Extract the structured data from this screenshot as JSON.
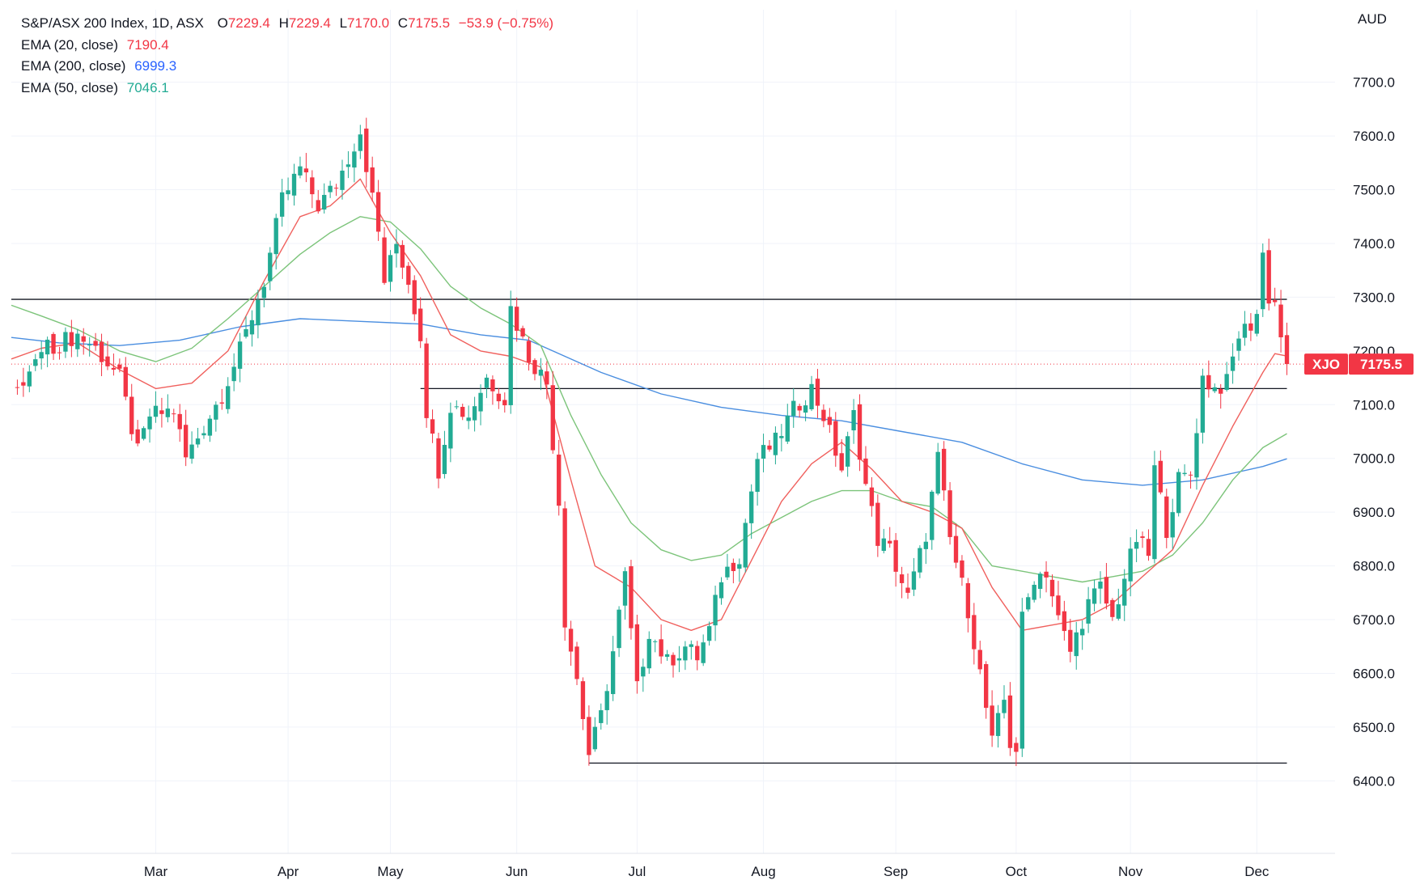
{
  "header": {
    "symbol_line": "S&P/ASX 200 Index, 1D, ASX",
    "ohlc": [
      {
        "key": "O",
        "value": "7229.4"
      },
      {
        "key": "H",
        "value": "7229.4"
      },
      {
        "key": "L",
        "value": "7170.0"
      },
      {
        "key": "C",
        "value": "7175.5"
      }
    ],
    "change": "−53.9 (−0.75%)",
    "currency": "AUD"
  },
  "indicators": [
    {
      "label": "EMA (20, close)",
      "value": "7190.4",
      "color": "#f23645"
    },
    {
      "label": "EMA (200, close)",
      "value": "6999.3",
      "color": "#2962ff"
    },
    {
      "label": "EMA (50, close)",
      "value": "7046.1",
      "color": "#22ab94"
    }
  ],
  "colors": {
    "up": "#22ab94",
    "down": "#f23645",
    "ema20": "#f0605d",
    "ema50": "#7cc47a",
    "ema200": "#4a8ee0",
    "grid": "#f0f3fa",
    "axis_text": "#131722",
    "last_price": "#f23645"
  },
  "chart_data": {
    "type": "candlestick",
    "title": "S&P/ASX 200 Index, 1D, ASX",
    "y_axis": {
      "label": "AUD",
      "range": [
        6265,
        7835
      ],
      "ticks": [
        6400,
        6500,
        6600,
        6700,
        6800,
        6900,
        7000,
        7100,
        7200,
        7300,
        7400,
        7500,
        7600,
        7700
      ],
      "tick_labels": [
        "6400.0",
        "6500.0",
        "6600.0",
        "6700.0",
        "6800.0",
        "6900.0",
        "7000.0",
        "7100.0",
        "7200.0",
        "7300.0",
        "7400.0",
        "7500.0",
        "7600.0",
        "7700.0"
      ]
    },
    "x_axis": {
      "start_index": -8,
      "end_index": 212,
      "labels": [
        {
          "text": "Mar",
          "index": 16
        },
        {
          "text": "Apr",
          "index": 38
        },
        {
          "text": "May",
          "index": 55
        },
        {
          "text": "Jun",
          "index": 76
        },
        {
          "text": "Jul",
          "index": 96
        },
        {
          "text": "Aug",
          "index": 117
        },
        {
          "text": "Sep",
          "index": 139
        },
        {
          "text": "Oct",
          "index": 159
        },
        {
          "text": "Nov",
          "index": 178
        },
        {
          "text": "Dec",
          "index": 199
        }
      ]
    },
    "grid": true,
    "legend": "top-left",
    "last_price": {
      "label": "XJO",
      "value": "7175.5",
      "price": 7175.5
    },
    "horizontal_lines": [
      {
        "price": 7296,
        "from_index": -8,
        "to_index": 204
      },
      {
        "price": 7130,
        "from_index": 60,
        "to_index": 204
      },
      {
        "price": 6433,
        "from_index": 88,
        "to_index": 204
      }
    ],
    "key_closes": [
      [
        -7,
        7120
      ],
      [
        -3,
        7200
      ],
      [
        3,
        7230
      ],
      [
        6,
        7205
      ],
      [
        10,
        7150
      ],
      [
        13,
        7010
      ],
      [
        15,
        7080
      ],
      [
        19,
        7090
      ],
      [
        21,
        7000
      ],
      [
        24,
        7060
      ],
      [
        27,
        7120
      ],
      [
        30,
        7200
      ],
      [
        34,
        7330
      ],
      [
        37,
        7480
      ],
      [
        40,
        7540
      ],
      [
        43,
        7470
      ],
      [
        46,
        7510
      ],
      [
        48,
        7560
      ],
      [
        50,
        7610
      ],
      [
        53,
        7420
      ],
      [
        54,
        7330
      ],
      [
        56,
        7400
      ],
      [
        58,
        7330
      ],
      [
        60,
        7230
      ],
      [
        61,
        7090
      ],
      [
        63,
        6980
      ],
      [
        65,
        7100
      ],
      [
        68,
        7080
      ],
      [
        71,
        7150
      ],
      [
        74,
        7110
      ],
      [
        75,
        7280
      ],
      [
        78,
        7190
      ],
      [
        81,
        7140
      ],
      [
        83,
        6920
      ],
      [
        84,
        6700
      ],
      [
        86,
        6590
      ],
      [
        88,
        6450
      ],
      [
        90,
        6520
      ],
      [
        92,
        6640
      ],
      [
        94,
        6780
      ],
      [
        96,
        6570
      ],
      [
        98,
        6680
      ],
      [
        101,
        6620
      ],
      [
        104,
        6650
      ],
      [
        106,
        6630
      ],
      [
        108,
        6680
      ],
      [
        110,
        6780
      ],
      [
        113,
        6820
      ],
      [
        116,
        7000
      ],
      [
        119,
        7030
      ],
      [
        122,
        7090
      ],
      [
        125,
        7130
      ],
      [
        127,
        7080
      ],
      [
        130,
        6980
      ],
      [
        132,
        7080
      ],
      [
        134,
        6950
      ],
      [
        136,
        6850
      ],
      [
        138,
        6830
      ],
      [
        141,
        6740
      ],
      [
        144,
        6860
      ],
      [
        146,
        7000
      ],
      [
        148,
        6850
      ],
      [
        151,
        6720
      ],
      [
        153,
        6600
      ],
      [
        155,
        6470
      ],
      [
        157,
        6550
      ],
      [
        158,
        6470
      ],
      [
        159,
        6460
      ],
      [
        160,
        6700
      ],
      [
        162,
        6780
      ],
      [
        164,
        6790
      ],
      [
        166,
        6700
      ],
      [
        168,
        6640
      ],
      [
        171,
        6730
      ],
      [
        173,
        6760
      ],
      [
        175,
        6700
      ],
      [
        177,
        6780
      ],
      [
        179,
        6850
      ],
      [
        181,
        6820
      ],
      [
        182,
        6980
      ],
      [
        184,
        6870
      ],
      [
        186,
        6960
      ],
      [
        188,
        6970
      ],
      [
        190,
        7150
      ],
      [
        192,
        7130
      ],
      [
        194,
        7140
      ],
      [
        196,
        7230
      ],
      [
        198,
        7250
      ],
      [
        199,
        7270
      ],
      [
        200,
        7380
      ],
      [
        201,
        7300
      ],
      [
        202,
        7290
      ],
      [
        203,
        7230
      ],
      [
        204,
        7175.5
      ]
    ],
    "ema20_points": [
      [
        -8,
        7185
      ],
      [
        -3,
        7205
      ],
      [
        3,
        7215
      ],
      [
        10,
        7165
      ],
      [
        16,
        7130
      ],
      [
        22,
        7140
      ],
      [
        28,
        7200
      ],
      [
        34,
        7330
      ],
      [
        40,
        7450
      ],
      [
        45,
        7470
      ],
      [
        50,
        7520
      ],
      [
        55,
        7420
      ],
      [
        60,
        7340
      ],
      [
        65,
        7230
      ],
      [
        70,
        7200
      ],
      [
        75,
        7190
      ],
      [
        80,
        7170
      ],
      [
        85,
        6960
      ],
      [
        89,
        6800
      ],
      [
        95,
        6760
      ],
      [
        100,
        6700
      ],
      [
        105,
        6680
      ],
      [
        110,
        6700
      ],
      [
        115,
        6810
      ],
      [
        120,
        6920
      ],
      [
        125,
        6990
      ],
      [
        130,
        7030
      ],
      [
        135,
        6980
      ],
      [
        140,
        6920
      ],
      [
        145,
        6900
      ],
      [
        150,
        6870
      ],
      [
        155,
        6760
      ],
      [
        160,
        6680
      ],
      [
        165,
        6690
      ],
      [
        170,
        6700
      ],
      [
        175,
        6730
      ],
      [
        180,
        6780
      ],
      [
        185,
        6830
      ],
      [
        190,
        6950
      ],
      [
        195,
        7060
      ],
      [
        200,
        7160
      ],
      [
        202,
        7195
      ],
      [
        204,
        7190.4
      ]
    ],
    "ema50_points": [
      [
        -8,
        7285
      ],
      [
        -3,
        7265
      ],
      [
        3,
        7240
      ],
      [
        10,
        7200
      ],
      [
        16,
        7180
      ],
      [
        22,
        7205
      ],
      [
        28,
        7260
      ],
      [
        34,
        7320
      ],
      [
        40,
        7380
      ],
      [
        45,
        7420
      ],
      [
        50,
        7450
      ],
      [
        55,
        7440
      ],
      [
        60,
        7390
      ],
      [
        65,
        7320
      ],
      [
        70,
        7280
      ],
      [
        75,
        7250
      ],
      [
        80,
        7210
      ],
      [
        85,
        7080
      ],
      [
        90,
        6970
      ],
      [
        95,
        6880
      ],
      [
        100,
        6830
      ],
      [
        105,
        6810
      ],
      [
        110,
        6820
      ],
      [
        115,
        6860
      ],
      [
        120,
        6890
      ],
      [
        125,
        6920
      ],
      [
        130,
        6940
      ],
      [
        135,
        6940
      ],
      [
        140,
        6920
      ],
      [
        145,
        6910
      ],
      [
        150,
        6870
      ],
      [
        155,
        6800
      ],
      [
        160,
        6790
      ],
      [
        165,
        6780
      ],
      [
        170,
        6770
      ],
      [
        175,
        6780
      ],
      [
        180,
        6790
      ],
      [
        185,
        6820
      ],
      [
        190,
        6880
      ],
      [
        195,
        6960
      ],
      [
        200,
        7020
      ],
      [
        204,
        7046.1
      ]
    ],
    "ema200_points": [
      [
        -8,
        7225
      ],
      [
        0,
        7215
      ],
      [
        10,
        7210
      ],
      [
        20,
        7220
      ],
      [
        30,
        7245
      ],
      [
        40,
        7260
      ],
      [
        50,
        7255
      ],
      [
        60,
        7250
      ],
      [
        70,
        7230
      ],
      [
        78,
        7220
      ],
      [
        82,
        7200
      ],
      [
        90,
        7160
      ],
      [
        100,
        7120
      ],
      [
        110,
        7095
      ],
      [
        120,
        7080
      ],
      [
        130,
        7070
      ],
      [
        140,
        7050
      ],
      [
        150,
        7030
      ],
      [
        160,
        6990
      ],
      [
        170,
        6960
      ],
      [
        180,
        6950
      ],
      [
        190,
        6960
      ],
      [
        200,
        6985
      ],
      [
        204,
        6999.3
      ]
    ]
  }
}
